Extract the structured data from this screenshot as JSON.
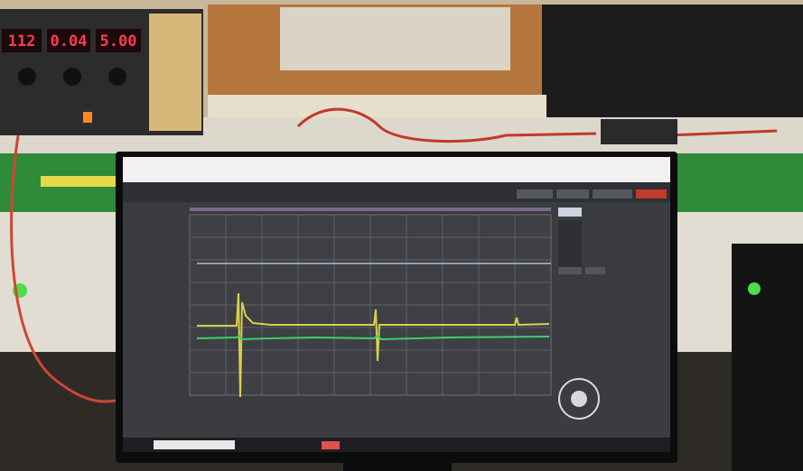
{
  "power_supply": {
    "displays": [
      "112",
      "0.04",
      "5.00"
    ]
  }
}
